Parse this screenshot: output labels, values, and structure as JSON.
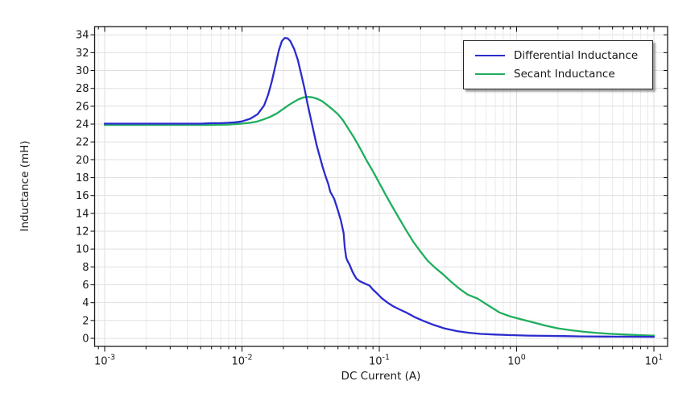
{
  "figure": {
    "xlabel": "DC Current (A)",
    "ylabel": "Inductance (mH)",
    "background_color": "#ffffff",
    "axis_color": "#1a1a1a",
    "major_grid_color": "#dfdfdf",
    "minor_grid_color": "#ebebeb"
  },
  "legend": {
    "position": "top-right",
    "entries": [
      {
        "label": "Differential Inductance",
        "color": "#2b2bcd"
      },
      {
        "label": "Secant Inductance",
        "color": "#1fae5e"
      }
    ]
  },
  "chart_data": {
    "type": "line",
    "title": "",
    "xlabel": "DC Current (A)",
    "ylabel": "Inductance (mH)",
    "x_scale": "log",
    "y_scale": "linear",
    "xlim": [
      0.001,
      10
    ],
    "ylim": [
      0,
      34
    ],
    "grid": true,
    "y_tick_step": 2,
    "y_tick_labels": [
      "0",
      "2",
      "4",
      "6",
      "8",
      "10",
      "12",
      "14",
      "16",
      "18",
      "20",
      "22",
      "24",
      "26",
      "28",
      "30",
      "32",
      "34"
    ],
    "x_tick_exponents": [
      -3,
      -2,
      -1,
      0,
      1
    ],
    "x_tick_labels": [
      "10⁻³",
      "10⁻²",
      "10⁻¹",
      "10⁰",
      "10¹"
    ],
    "legend_position": "top-right",
    "series": [
      {
        "name": "Differential Inductance",
        "color": "#2b2bcd",
        "points": [
          [
            0.001,
            24.05
          ],
          [
            0.0015,
            24.05
          ],
          [
            0.002,
            24.05
          ],
          [
            0.003,
            24.05
          ],
          [
            0.004,
            24.05
          ],
          [
            0.005,
            24.05
          ],
          [
            0.006,
            24.1
          ],
          [
            0.007,
            24.1
          ],
          [
            0.008,
            24.15
          ],
          [
            0.009,
            24.2
          ],
          [
            0.01,
            24.3
          ],
          [
            0.0115,
            24.6
          ],
          [
            0.013,
            25.1
          ],
          [
            0.0145,
            26.1
          ],
          [
            0.0155,
            27.3
          ],
          [
            0.0165,
            28.8
          ],
          [
            0.0175,
            30.5
          ],
          [
            0.0185,
            32.2
          ],
          [
            0.0195,
            33.3
          ],
          [
            0.0205,
            33.65
          ],
          [
            0.0215,
            33.6
          ],
          [
            0.0225,
            33.3
          ],
          [
            0.024,
            32.4
          ],
          [
            0.0255,
            31.2
          ],
          [
            0.027,
            29.6
          ],
          [
            0.0285,
            28.0
          ],
          [
            0.03,
            26.3
          ],
          [
            0.0315,
            24.8
          ],
          [
            0.033,
            23.4
          ],
          [
            0.035,
            21.6
          ],
          [
            0.0385,
            19.3
          ],
          [
            0.0405,
            18.2
          ],
          [
            0.0425,
            17.3
          ],
          [
            0.044,
            16.4
          ],
          [
            0.047,
            15.6
          ],
          [
            0.05,
            14.3
          ],
          [
            0.0525,
            13.2
          ],
          [
            0.055,
            11.8
          ],
          [
            0.056,
            10.2
          ],
          [
            0.0575,
            9.0
          ],
          [
            0.059,
            8.6
          ],
          [
            0.0605,
            8.3
          ],
          [
            0.064,
            7.4
          ],
          [
            0.068,
            6.7
          ],
          [
            0.072,
            6.4
          ],
          [
            0.078,
            6.15
          ],
          [
            0.085,
            5.9
          ],
          [
            0.09,
            5.45
          ],
          [
            0.096,
            5.05
          ],
          [
            0.104,
            4.5
          ],
          [
            0.115,
            4.0
          ],
          [
            0.126,
            3.6
          ],
          [
            0.14,
            3.25
          ],
          [
            0.157,
            2.9
          ],
          [
            0.18,
            2.4
          ],
          [
            0.21,
            1.95
          ],
          [
            0.25,
            1.5
          ],
          [
            0.3,
            1.1
          ],
          [
            0.37,
            0.8
          ],
          [
            0.45,
            0.62
          ],
          [
            0.55,
            0.5
          ],
          [
            0.7,
            0.42
          ],
          [
            0.9,
            0.36
          ],
          [
            1.2,
            0.31
          ],
          [
            1.6,
            0.28
          ],
          [
            2.2,
            0.25
          ],
          [
            3.0,
            0.22
          ],
          [
            4.5,
            0.2
          ],
          [
            7.0,
            0.18
          ],
          [
            10,
            0.17
          ]
        ]
      },
      {
        "name": "Secant Inductance",
        "color": "#1fae5e",
        "points": [
          [
            0.001,
            23.9
          ],
          [
            0.0015,
            23.9
          ],
          [
            0.002,
            23.9
          ],
          [
            0.003,
            23.9
          ],
          [
            0.004,
            23.9
          ],
          [
            0.005,
            23.9
          ],
          [
            0.006,
            23.9
          ],
          [
            0.007,
            23.92
          ],
          [
            0.008,
            23.95
          ],
          [
            0.009,
            24.0
          ],
          [
            0.01,
            24.05
          ],
          [
            0.0115,
            24.15
          ],
          [
            0.013,
            24.3
          ],
          [
            0.0145,
            24.55
          ],
          [
            0.016,
            24.8
          ],
          [
            0.018,
            25.2
          ],
          [
            0.02,
            25.7
          ],
          [
            0.022,
            26.15
          ],
          [
            0.024,
            26.5
          ],
          [
            0.026,
            26.8
          ],
          [
            0.028,
            26.98
          ],
          [
            0.03,
            27.05
          ],
          [
            0.0325,
            27.0
          ],
          [
            0.035,
            26.85
          ],
          [
            0.038,
            26.6
          ],
          [
            0.042,
            26.1
          ],
          [
            0.046,
            25.6
          ],
          [
            0.05,
            25.1
          ],
          [
            0.0545,
            24.4
          ],
          [
            0.06,
            23.4
          ],
          [
            0.066,
            22.4
          ],
          [
            0.073,
            21.2
          ],
          [
            0.081,
            19.9
          ],
          [
            0.09,
            18.7
          ],
          [
            0.1,
            17.4
          ],
          [
            0.112,
            16.0
          ],
          [
            0.125,
            14.7
          ],
          [
            0.14,
            13.4
          ],
          [
            0.157,
            12.1
          ],
          [
            0.177,
            10.8
          ],
          [
            0.2,
            9.7
          ],
          [
            0.225,
            8.7
          ],
          [
            0.255,
            7.9
          ],
          [
            0.29,
            7.2
          ],
          [
            0.33,
            6.4
          ],
          [
            0.38,
            5.6
          ],
          [
            0.44,
            4.9
          ],
          [
            0.52,
            4.45
          ],
          [
            0.62,
            3.7
          ],
          [
            0.75,
            2.9
          ],
          [
            0.9,
            2.45
          ],
          [
            1.1,
            2.1
          ],
          [
            1.35,
            1.75
          ],
          [
            1.65,
            1.4
          ],
          [
            2.0,
            1.12
          ],
          [
            2.5,
            0.9
          ],
          [
            3.1,
            0.73
          ],
          [
            3.9,
            0.6
          ],
          [
            4.9,
            0.5
          ],
          [
            6.2,
            0.42
          ],
          [
            7.8,
            0.36
          ],
          [
            10,
            0.31
          ]
        ]
      }
    ]
  }
}
